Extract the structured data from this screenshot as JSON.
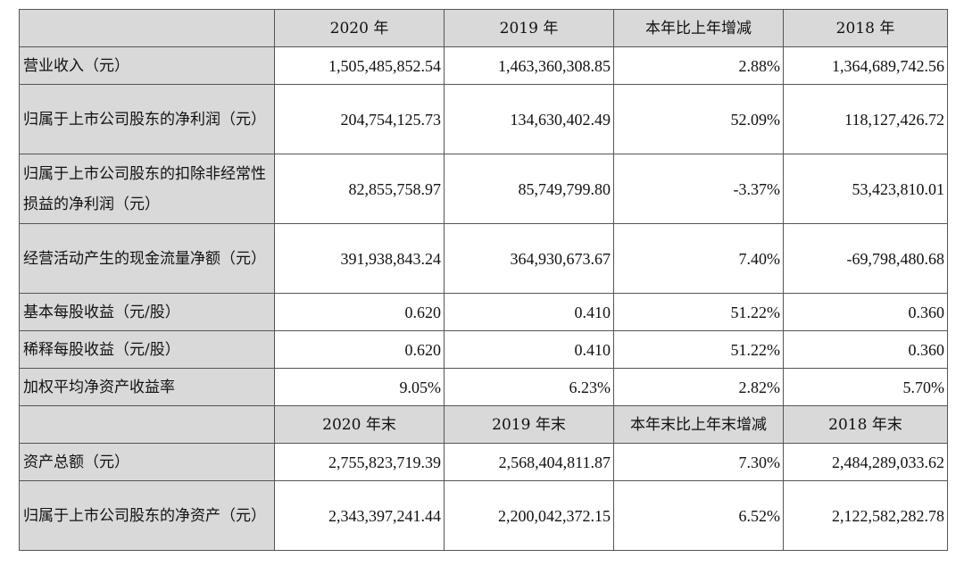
{
  "header_top": [
    "",
    "2020 年",
    "2019 年",
    "本年比上年增减",
    "2018 年"
  ],
  "rows_top": [
    {
      "label": "营业收入（元）",
      "values": [
        "1,505,485,852.54",
        "1,463,360,308.85",
        "2.88%",
        "1,364,689,742.56"
      ]
    },
    {
      "label": "归属于上市公司股东的净利润（元）",
      "values": [
        "204,754,125.73",
        "134,630,402.49",
        "52.09%",
        "118,127,426.72"
      ]
    },
    {
      "label": "归属于上市公司股东的扣除非经常性损益的净利润（元）",
      "values": [
        "82,855,758.97",
        "85,749,799.80",
        "-3.37%",
        "53,423,810.01"
      ]
    },
    {
      "label": "经营活动产生的现金流量净额（元）",
      "values": [
        "391,938,843.24",
        "364,930,673.67",
        "7.40%",
        "-69,798,480.68"
      ]
    },
    {
      "label": "基本每股收益（元/股）",
      "values": [
        "0.620",
        "0.410",
        "51.22%",
        "0.360"
      ]
    },
    {
      "label": "稀释每股收益（元/股）",
      "values": [
        "0.620",
        "0.410",
        "51.22%",
        "0.360"
      ]
    },
    {
      "label": "加权平均净资产收益率",
      "values": [
        "9.05%",
        "6.23%",
        "2.82%",
        "5.70%"
      ]
    }
  ],
  "header_bottom": [
    "",
    "2020 年末",
    "2019 年末",
    "本年末比上年末增减",
    "2018 年末"
  ],
  "rows_bottom": [
    {
      "label": "资产总额（元）",
      "values": [
        "2,755,823,719.39",
        "2,568,404,811.87",
        "7.30%",
        "2,484,289,033.62"
      ]
    },
    {
      "label": "归属于上市公司股东的净资产（元）",
      "values": [
        "2,343,397,241.44",
        "2,200,042,372.15",
        "6.52%",
        "2,122,582,282.78"
      ]
    }
  ]
}
